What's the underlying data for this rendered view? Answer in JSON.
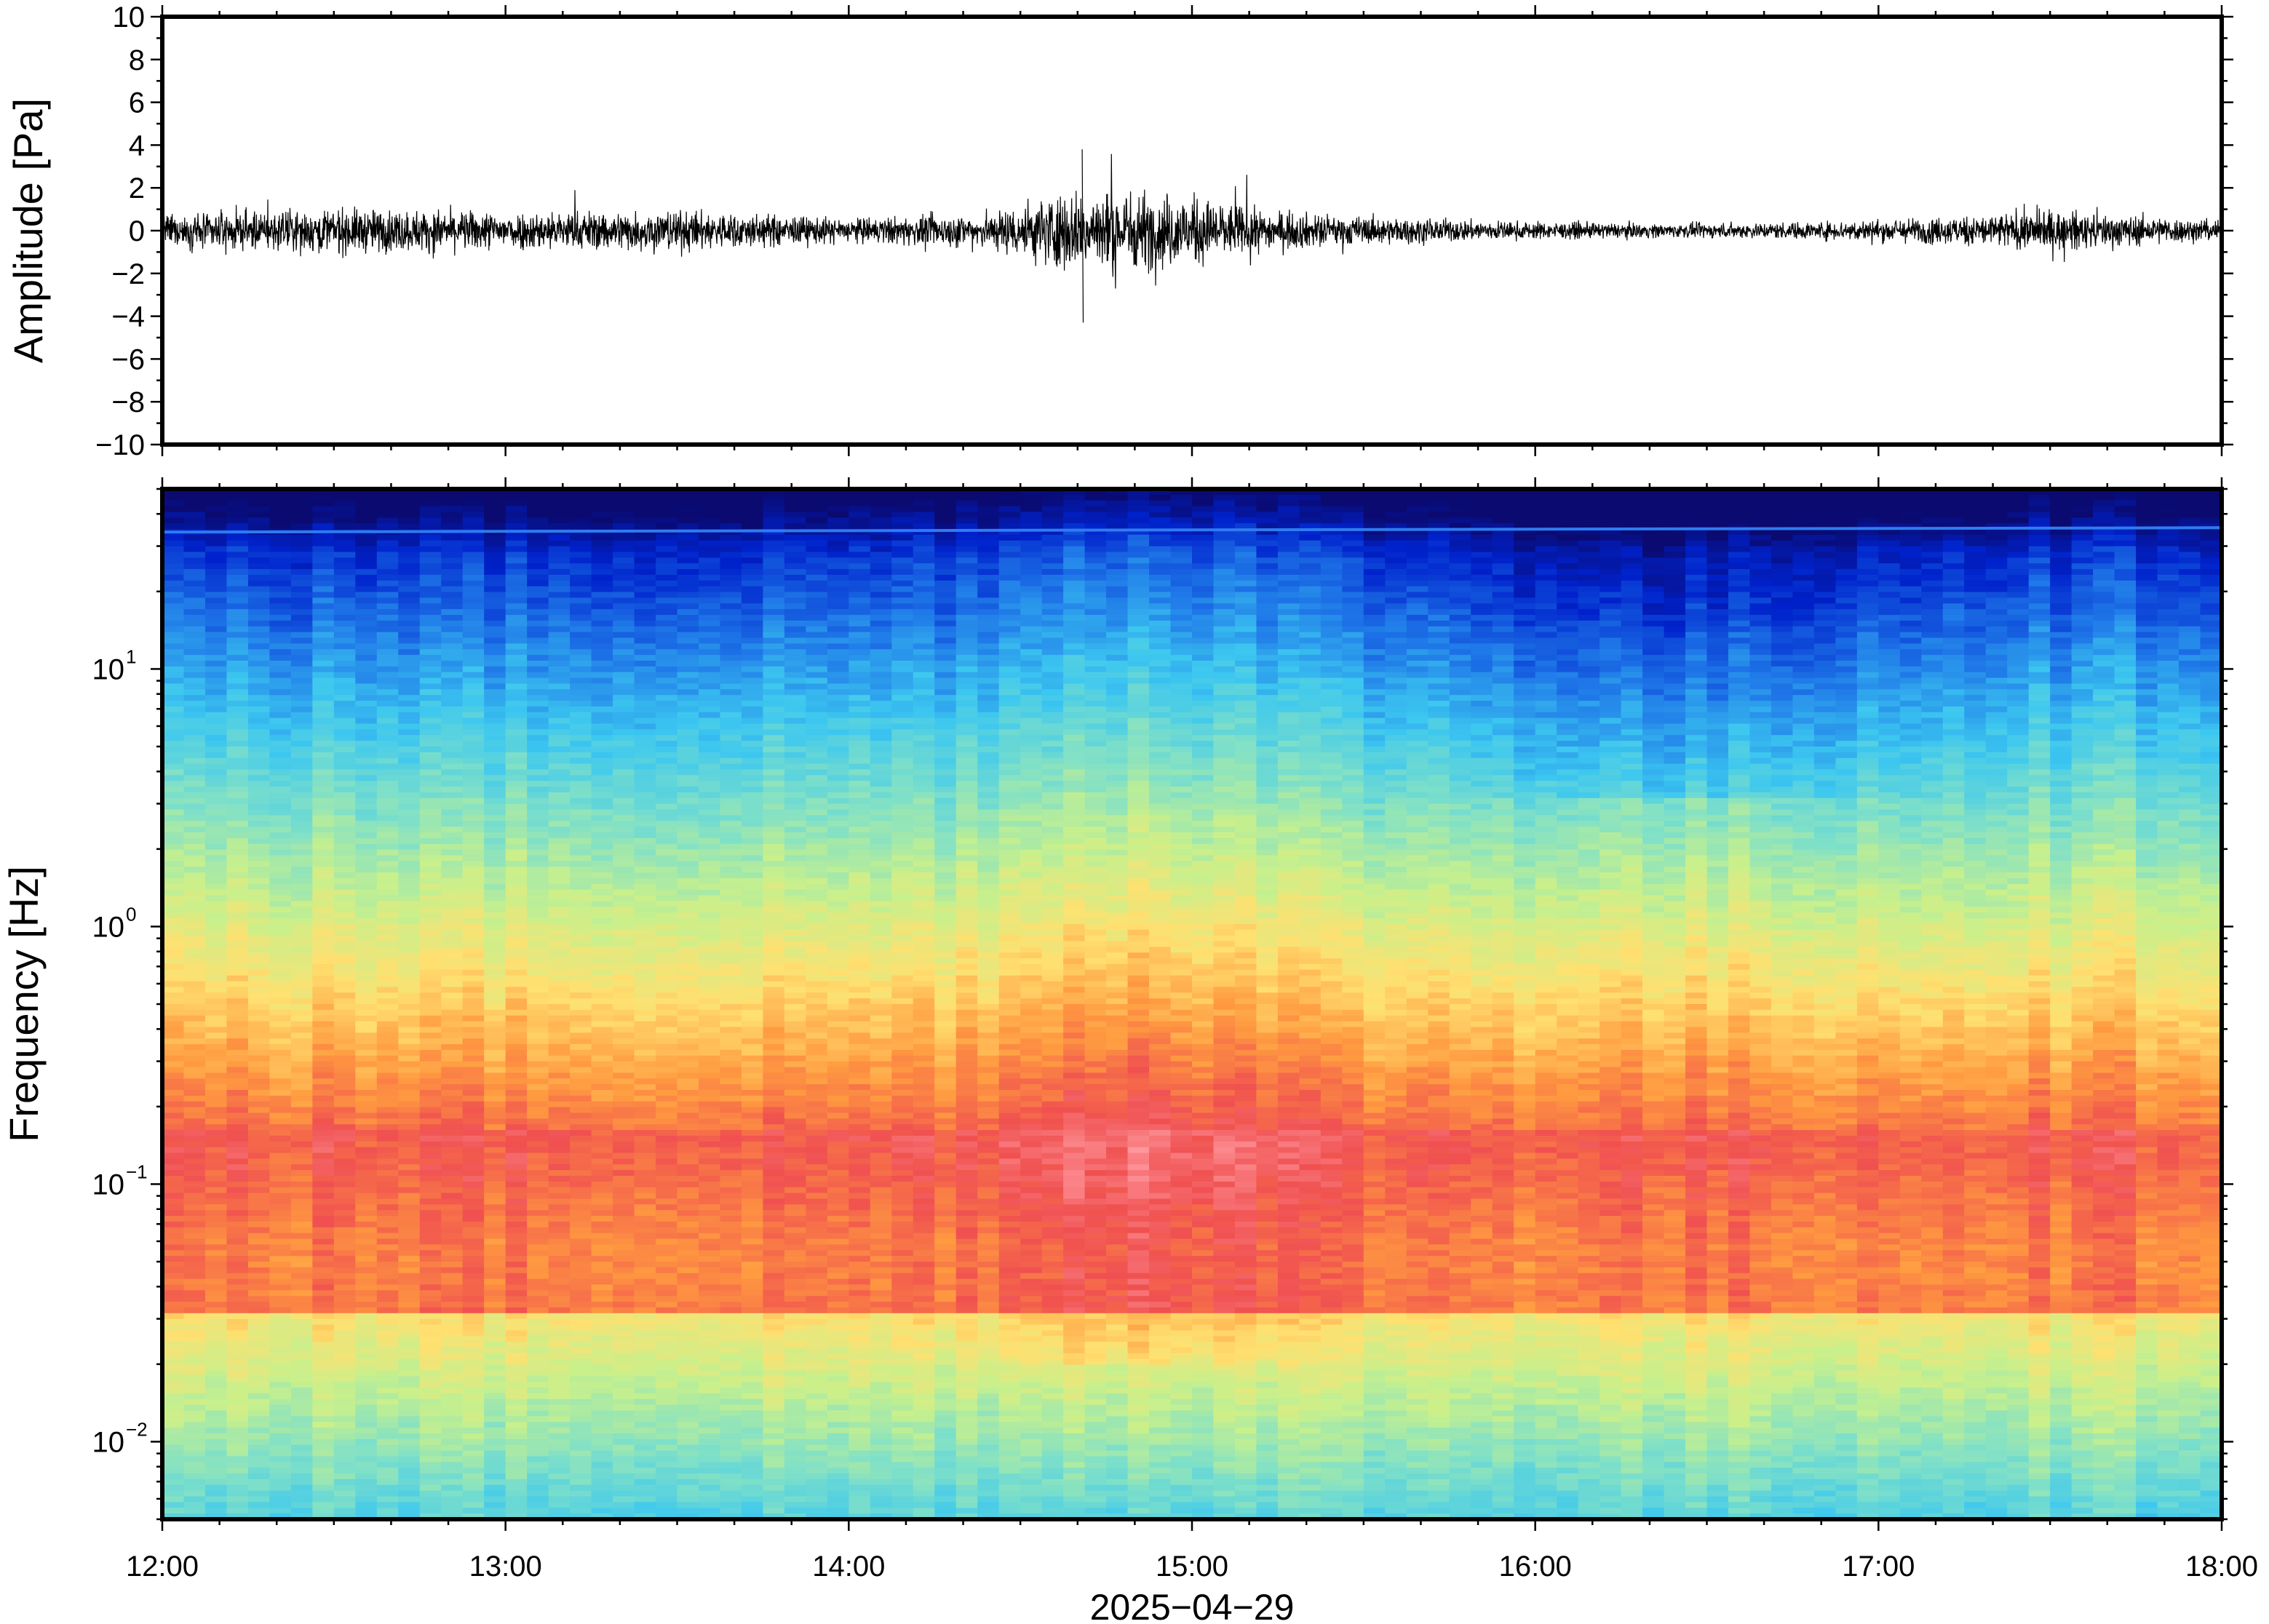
{
  "chart_data": [
    {
      "type": "line",
      "ylabel": "Amplitude [Pa]",
      "ylim": [
        -10,
        10
      ],
      "yticks": [
        10,
        8,
        6,
        4,
        2,
        0,
        -2,
        -4,
        -6,
        -8,
        -10
      ],
      "ytick_labels": [
        "10",
        "8",
        "6",
        "4",
        "2",
        "0",
        "−2",
        "−4",
        "−6",
        "−8",
        "−10"
      ],
      "xlim": [
        "12:00",
        "18:00"
      ],
      "grid": false,
      "series": [
        {
          "color": "#000000",
          "envelope_time_hours": [
            12.0,
            12.5,
            13.0,
            13.5,
            14.0,
            14.4,
            14.6,
            14.8,
            15.0,
            15.2,
            15.5,
            16.0,
            16.4,
            16.8,
            17.2,
            17.5,
            17.8,
            18.0
          ],
          "envelope_amplitude_pa": [
            0.9,
            1.3,
            1.1,
            1.2,
            0.7,
            1.0,
            2.2,
            2.4,
            2.0,
            1.2,
            0.8,
            0.5,
            0.4,
            0.5,
            0.8,
            1.2,
            0.8,
            0.6
          ],
          "max_peak_pa": 3.8,
          "min_peak_pa": -4.3
        }
      ]
    },
    {
      "type": "heatmap",
      "ylabel": "Frequency [Hz]",
      "xlabel": "2025−04−29",
      "yscale": "log",
      "ylim": [
        0.005,
        50
      ],
      "yticks": [
        0.01,
        0.1,
        1,
        10
      ],
      "ytick_labels": [
        {
          "base": "10",
          "exp": "−2"
        },
        {
          "base": "10",
          "exp": "−1"
        },
        {
          "base": "10",
          "exp": "0"
        },
        {
          "base": "10",
          "exp": "1"
        }
      ],
      "xticks": [
        "12:00",
        "13:00",
        "14:00",
        "15:00",
        "16:00",
        "17:00",
        "18:00"
      ],
      "colormap": "jet",
      "colors": [
        "#0a0a70",
        "#0022cc",
        "#1f78e8",
        "#3cc7f0",
        "#7fe0c8",
        "#c8f08c",
        "#ffe070",
        "#ff9a40",
        "#f05050",
        "#ff9aa0"
      ],
      "grid": false
    }
  ]
}
